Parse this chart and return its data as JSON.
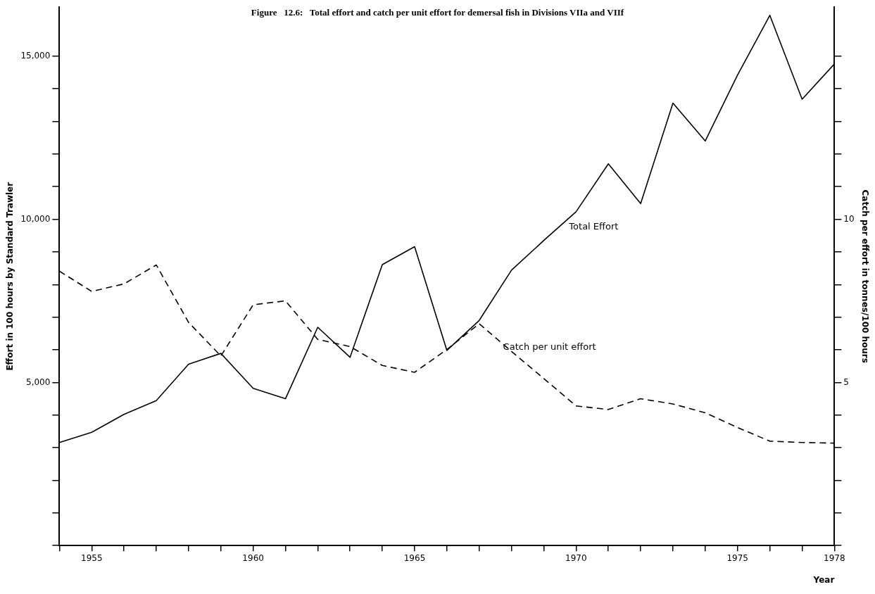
{
  "chart_data": {
    "type": "line",
    "title": "Figure   12.6:   Total effort and catch per unit effort for demersal fish in Divisions VIIa and VIIf",
    "xlabel": "Year",
    "ylabel": "Effort in 100 hours by Standard Trawler",
    "y2label": "Catch per effort in tonnes/100 hours",
    "x": [
      1954,
      1955,
      1956,
      1957,
      1958,
      1959,
      1960,
      1961,
      1962,
      1963,
      1964,
      1965,
      1966,
      1967,
      1968,
      1969,
      1970,
      1971,
      1972,
      1973,
      1974,
      1975,
      1976,
      1977,
      1978
    ],
    "series": [
      {
        "name": "Total Effort",
        "color": "#000000",
        "line_style": "solid",
        "values": [
          3160,
          3470,
          4020,
          4440,
          5560,
          5890,
          4820,
          4500,
          6690,
          5770,
          8610,
          9160,
          5980,
          6900,
          8440,
          9350,
          10230,
          11700,
          10480,
          13560,
          12400,
          14420,
          16250,
          13680,
          14760
        ]
      },
      {
        "name": "Catch per unit effort",
        "color": "#000000",
        "line_style": "dashed",
        "axis": "y2",
        "values": [
          8.41,
          7.79,
          8.02,
          8.6,
          6.84,
          5.81,
          7.38,
          7.5,
          6.32,
          6.1,
          5.52,
          5.31,
          6.01,
          6.8,
          5.95,
          5.12,
          4.28,
          4.17,
          4.5,
          4.34,
          4.07,
          3.62,
          3.2,
          3.16,
          3.14
        ]
      }
    ],
    "xlim": [
      1954,
      1978
    ],
    "xticks": [
      {
        "value": 1954,
        "label": null
      },
      1955,
      {
        "value": 1956,
        "label": null
      },
      {
        "value": 1957,
        "label": null
      },
      {
        "value": 1958,
        "label": null
      },
      {
        "value": 1959,
        "label": null
      },
      1960,
      {
        "value": 1961,
        "label": null
      },
      {
        "value": 1962,
        "label": null
      },
      {
        "value": 1963,
        "label": null
      },
      {
        "value": 1964,
        "label": null
      },
      1965,
      {
        "value": 1966,
        "label": null
      },
      {
        "value": 1967,
        "label": null
      },
      {
        "value": 1968,
        "label": null
      },
      {
        "value": 1969,
        "label": null
      },
      1970,
      {
        "value": 1971,
        "label": null
      },
      {
        "value": 1972,
        "label": null
      },
      {
        "value": 1973,
        "label": null
      },
      {
        "value": 1974,
        "label": null
      },
      1975,
      {
        "value": 1976,
        "label": null
      },
      {
        "value": 1977,
        "label": null
      },
      1978
    ],
    "ylim": [
      0,
      16500
    ],
    "yticks": [
      {
        "value": 0,
        "label": null
      },
      {
        "value": 1000,
        "label": null
      },
      {
        "value": 2000,
        "label": null
      },
      {
        "value": 3000,
        "label": null
      },
      {
        "value": 4000,
        "label": null
      },
      {
        "value": 5000,
        "label": "5,000"
      },
      {
        "value": 6000,
        "label": null
      },
      {
        "value": 7000,
        "label": null
      },
      {
        "value": 8000,
        "label": null
      },
      {
        "value": 9000,
        "label": null
      },
      {
        "value": 10000,
        "label": "10,000"
      },
      {
        "value": 11000,
        "label": null
      },
      {
        "value": 12000,
        "label": null
      },
      {
        "value": 13000,
        "label": null
      },
      {
        "value": 14000,
        "label": null
      },
      {
        "value": 15000,
        "label": "15,000"
      }
    ],
    "y2lim": [
      0,
      16.5
    ],
    "y2ticks": [
      {
        "value": 0,
        "label": null
      },
      {
        "value": 1,
        "label": null
      },
      {
        "value": 2,
        "label": null
      },
      {
        "value": 3,
        "label": null
      },
      {
        "value": 4,
        "label": null
      },
      5,
      {
        "value": 6,
        "label": null
      },
      {
        "value": 7,
        "label": null
      },
      {
        "value": 8,
        "label": null
      },
      {
        "value": 9,
        "label": null
      },
      10,
      {
        "value": 11,
        "label": null
      },
      {
        "value": 12,
        "label": null
      },
      {
        "value": 13,
        "label": null
      },
      {
        "value": 14,
        "label": null
      },
      {
        "value": 15,
        "label": null
      }
    ],
    "grid": false,
    "legend": false,
    "marker": "none"
  }
}
